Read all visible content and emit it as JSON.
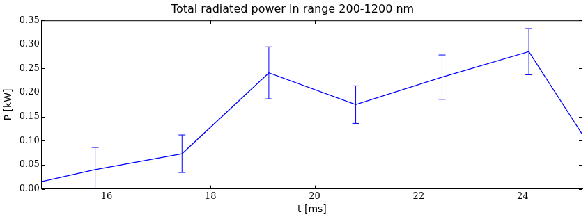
{
  "chart_data": {
    "type": "line",
    "title": "Total radiated power in range 200-1200 nm",
    "x_label": "t [ms]",
    "y_label": "P [kW]",
    "x": [
      14.75,
      15.78,
      17.45,
      19.12,
      20.79,
      22.45,
      24.12,
      25.15
    ],
    "series": [
      {
        "name": "P",
        "color": "#0000ff",
        "values": [
          0.015,
          0.04,
          0.073,
          0.241,
          0.175,
          0.232,
          0.285,
          0.113
        ],
        "errors": [
          null,
          0.046,
          0.039,
          0.054,
          0.039,
          0.046,
          0.048,
          null
        ]
      }
    ],
    "xlim": [
      14.75,
      25.15
    ],
    "xticks": [
      16,
      18,
      20,
      22,
      24
    ],
    "ylim": [
      0,
      0.35
    ],
    "yticks": [
      {
        "value": 0,
        "label": "0.00"
      },
      {
        "value": 0.05,
        "label": "0.05"
      },
      {
        "value": 0.1,
        "label": "0.10"
      },
      {
        "value": 0.15,
        "label": "0.15"
      },
      {
        "value": 0.2,
        "label": "0.20"
      },
      {
        "value": 0.25,
        "label": "0.25"
      },
      {
        "value": 0.3,
        "label": "0.30"
      },
      {
        "value": 0.35,
        "label": "0.35"
      }
    ],
    "grid": false
  }
}
